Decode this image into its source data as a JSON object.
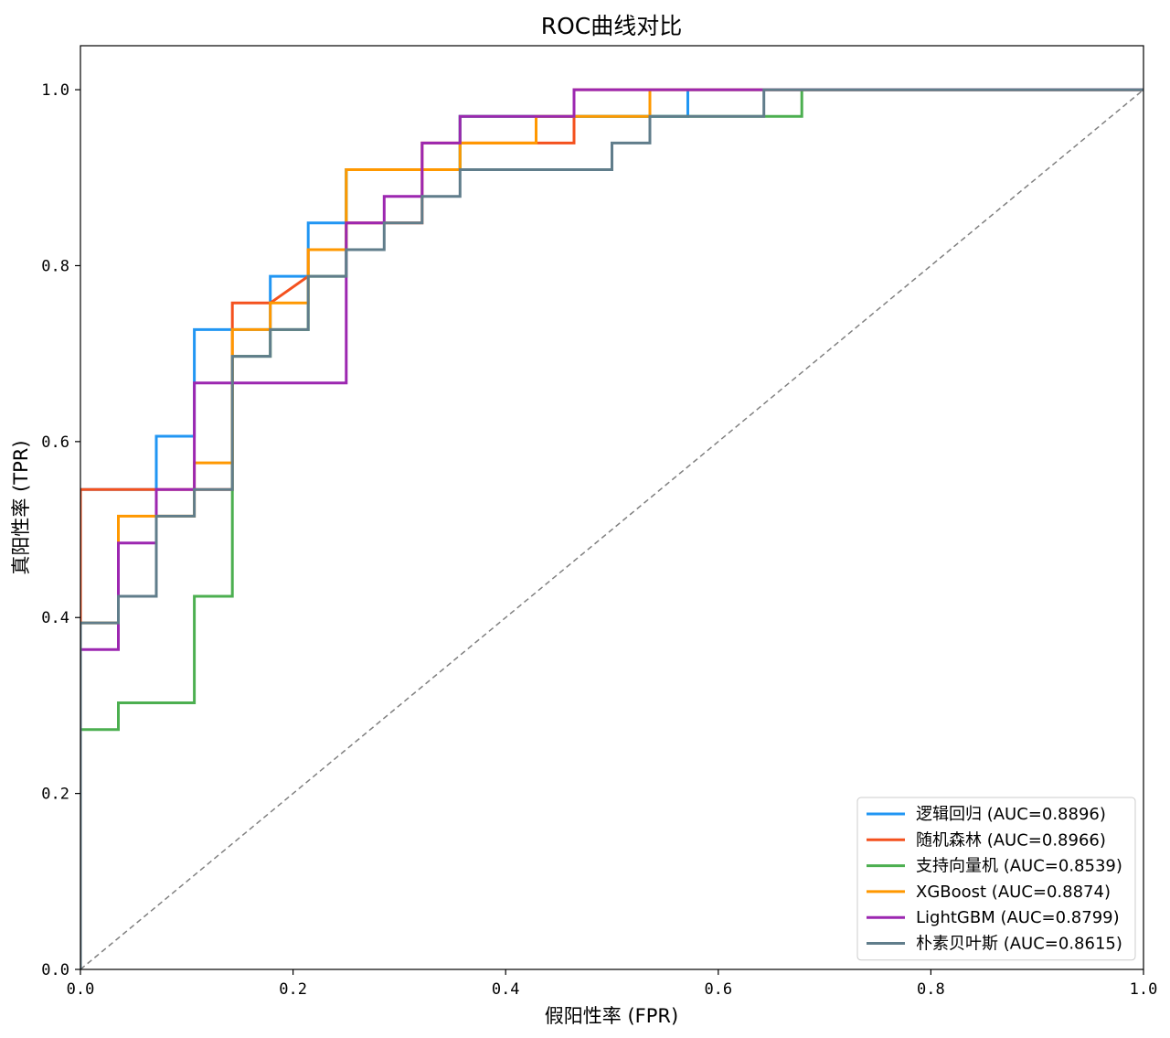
{
  "chart_data": {
    "type": "line",
    "title": "ROC曲线对比",
    "xlabel": "假阳性率 (FPR)",
    "ylabel": "真阳性率 (TPR)",
    "xlim": [
      0.0,
      1.0
    ],
    "ylim": [
      0.0,
      1.05
    ],
    "x_ticks": [
      "0.0",
      "0.2",
      "0.4",
      "0.6",
      "0.8",
      "1.0"
    ],
    "y_ticks": [
      "0.0",
      "0.2",
      "0.4",
      "0.6",
      "0.8",
      "1.0"
    ],
    "grid": false,
    "legend_position": "lower-right",
    "diagonal": {
      "x": [
        0,
        1
      ],
      "y": [
        0,
        1
      ],
      "color": "#808080",
      "style": "dashed"
    },
    "series": [
      {
        "name": "逻辑回归 (AUC=0.8896)",
        "color": "#2196F3",
        "x": [
          0,
          0,
          0.0357,
          0.0357,
          0.0714,
          0.0714,
          0.1071,
          0.1071,
          0.1786,
          0.1786,
          0.2143,
          0.2143,
          0.25,
          0.25,
          0.3571,
          0.3571,
          0.5714,
          0.5714,
          1.0
        ],
        "y": [
          0,
          0.5455,
          0.5455,
          0.5455,
          0.5455,
          0.6061,
          0.6061,
          0.7273,
          0.7273,
          0.7879,
          0.7879,
          0.8485,
          0.8485,
          0.9091,
          0.9091,
          0.9697,
          0.9697,
          1.0,
          1.0
        ]
      },
      {
        "name": "随机森林 (AUC=0.8966)",
        "color": "#F4511E",
        "x": [
          0,
          0,
          0.0357,
          0.0714,
          0.1071,
          0.1429,
          0.1429,
          0.1786,
          0.2143,
          0.2143,
          0.25,
          0.25,
          0.3214,
          0.3214,
          0.3571,
          0.3571,
          0.4643,
          0.4643,
          0.6429,
          1.0
        ],
        "y": [
          0,
          0.5455,
          0.5455,
          0.5455,
          0.5455,
          0.5455,
          0.7576,
          0.7576,
          0.7879,
          0.8182,
          0.8182,
          0.8485,
          0.8485,
          0.9394,
          0.9394,
          0.9394,
          0.9394,
          1.0,
          1.0,
          1.0
        ]
      },
      {
        "name": "支持向量机 (AUC=0.8539)",
        "color": "#4CAF50",
        "x": [
          0,
          0,
          0.0357,
          0.0357,
          0.1071,
          0.1071,
          0.1429,
          0.1429,
          0.1786,
          0.1786,
          0.2143,
          0.2143,
          0.25,
          0.25,
          0.3571,
          0.3571,
          0.6786,
          0.6786,
          1.0
        ],
        "y": [
          0,
          0.2727,
          0.2727,
          0.303,
          0.303,
          0.4242,
          0.4242,
          0.697,
          0.697,
          0.7273,
          0.7273,
          0.7879,
          0.7879,
          0.9091,
          0.9091,
          0.9697,
          0.9697,
          1.0,
          1.0
        ]
      },
      {
        "name": "XGBoost (AUC=0.8874)",
        "color": "#FF9800",
        "x": [
          0,
          0,
          0.0357,
          0.0357,
          0.1071,
          0.1071,
          0.1429,
          0.1429,
          0.1786,
          0.1786,
          0.2143,
          0.2143,
          0.25,
          0.25,
          0.3571,
          0.3571,
          0.4286,
          0.4286,
          0.5357,
          0.5357,
          1.0
        ],
        "y": [
          0,
          0.3939,
          0.3939,
          0.5152,
          0.5152,
          0.5758,
          0.5758,
          0.7273,
          0.7273,
          0.7576,
          0.7576,
          0.8182,
          0.8182,
          0.9091,
          0.9091,
          0.9394,
          0.9394,
          0.9697,
          0.9697,
          1.0,
          1.0
        ]
      },
      {
        "name": "LightGBM (AUC=0.8799)",
        "color": "#9C27B0",
        "x": [
          0,
          0,
          0.0357,
          0.0357,
          0.0714,
          0.0714,
          0.1071,
          0.1071,
          0.25,
          0.25,
          0.2857,
          0.2857,
          0.3214,
          0.3214,
          0.3571,
          0.3571,
          0.4643,
          0.4643,
          0.6429,
          1.0
        ],
        "y": [
          0,
          0.3636,
          0.3636,
          0.4848,
          0.4848,
          0.5455,
          0.5455,
          0.6667,
          0.6667,
          0.8485,
          0.8485,
          0.8788,
          0.8788,
          0.9394,
          0.9394,
          0.9697,
          0.9697,
          1.0,
          1.0,
          1.0
        ]
      },
      {
        "name": "朴素贝叶斯 (AUC=0.8615)",
        "color": "#607D8B",
        "x": [
          0,
          0,
          0.0357,
          0.0357,
          0.0714,
          0.0714,
          0.1071,
          0.1071,
          0.1429,
          0.1429,
          0.1786,
          0.1786,
          0.2143,
          0.2143,
          0.25,
          0.25,
          0.2857,
          0.2857,
          0.3214,
          0.3214,
          0.3571,
          0.3571,
          0.5,
          0.5,
          0.5357,
          0.5357,
          0.6429,
          0.6429,
          1.0
        ],
        "y": [
          0,
          0.3939,
          0.3939,
          0.4242,
          0.4242,
          0.5152,
          0.5152,
          0.5455,
          0.5455,
          0.697,
          0.697,
          0.7273,
          0.7273,
          0.7879,
          0.7879,
          0.8182,
          0.8182,
          0.8485,
          0.8485,
          0.8788,
          0.8788,
          0.9091,
          0.9091,
          0.9394,
          0.9394,
          0.9697,
          0.9697,
          1.0,
          1.0
        ]
      }
    ]
  }
}
